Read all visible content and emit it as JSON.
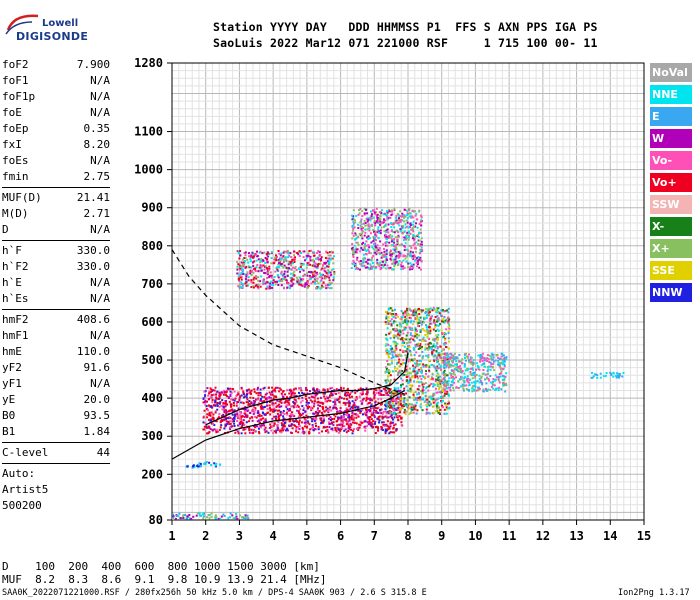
{
  "logo": {
    "line1": "Lowell",
    "line2": "DIGISONDE"
  },
  "header": {
    "line1": "Station YYYY DAY   DDD HHMMSS P1  FFS S AXN PPS IGA PS",
    "line2": "SaoLuis 2022 Mar12 071 221000 RSF     1 715 100 00- 11"
  },
  "params": [
    {
      "group": [
        {
          "k": "foF2",
          "v": "7.900"
        },
        {
          "k": "foF1",
          "v": "N/A"
        },
        {
          "k": "foF1p",
          "v": "N/A"
        },
        {
          "k": "foE",
          "v": "N/A"
        },
        {
          "k": "foEp",
          "v": "0.35"
        },
        {
          "k": "fxI",
          "v": "8.20"
        },
        {
          "k": "foEs",
          "v": "N/A"
        },
        {
          "k": "fmin",
          "v": "2.75"
        }
      ]
    },
    {
      "group": [
        {
          "k": "MUF(D)",
          "v": "21.41"
        },
        {
          "k": "M(D)",
          "v": "2.71"
        },
        {
          "k": "D",
          "v": "N/A"
        }
      ]
    },
    {
      "group": [
        {
          "k": "h`F",
          "v": "330.0"
        },
        {
          "k": "h`F2",
          "v": "330.0"
        },
        {
          "k": "h`E",
          "v": "N/A"
        },
        {
          "k": "h`Es",
          "v": "N/A"
        }
      ]
    },
    {
      "group": [
        {
          "k": "hmF2",
          "v": "408.6"
        },
        {
          "k": "hmF1",
          "v": "N/A"
        },
        {
          "k": "hmE",
          "v": "110.0"
        },
        {
          "k": "yF2",
          "v": "91.6"
        },
        {
          "k": "yF1",
          "v": "N/A"
        },
        {
          "k": "yE",
          "v": "20.0"
        },
        {
          "k": "B0",
          "v": "93.5"
        },
        {
          "k": "B1",
          "v": "1.84"
        }
      ]
    },
    {
      "group": [
        {
          "k": "C-level",
          "v": "44"
        }
      ]
    },
    {
      "group": [
        {
          "k": "Auto:",
          "v": ""
        },
        {
          "k": "Artist5",
          "v": ""
        },
        {
          "k": "500200",
          "v": ""
        }
      ]
    }
  ],
  "legend": [
    {
      "label": "NoVal",
      "color": "#a8a8a8"
    },
    {
      "label": "NNE",
      "color": "#00e4f0"
    },
    {
      "label": "E",
      "color": "#3aa8f0"
    },
    {
      "label": "W",
      "color": "#b000b8"
    },
    {
      "label": "Vo-",
      "color": "#ff50b8"
    },
    {
      "label": "Vo+",
      "color": "#f00020"
    },
    {
      "label": "SSW",
      "color": "#f4b4b4"
    },
    {
      "label": "X-",
      "color": "#188018"
    },
    {
      "label": "X+",
      "color": "#88c060"
    },
    {
      "label": "SSE",
      "color": "#e0d000"
    },
    {
      "label": "NNW",
      "color": "#2020e0"
    }
  ],
  "bottom": {
    "line1": "D    100  200  400  600  800 1000 1500 3000 [km]",
    "line2": "MUF  8.2  8.3  8.6  9.1  9.8 10.9 13.9 21.4 [MHz]"
  },
  "footer": {
    "left": "SAA0K_2022071221000.RSF / 280fx256h 50 kHz 5.0 km / DPS-4 SAA0K 903 / 2.6 S 315.8 E",
    "right": "Ion2Png 1.3.17"
  },
  "chart_data": {
    "type": "scatter",
    "xlabel": "",
    "ylabel": "",
    "xlim": [
      1,
      15
    ],
    "ylim": [
      80,
      1280
    ],
    "x_ticks": [
      1,
      2,
      3,
      4,
      5,
      6,
      7,
      8,
      9,
      10,
      11,
      12,
      13,
      14,
      15
    ],
    "y_ticks": [
      80,
      200,
      300,
      400,
      500,
      600,
      700,
      800,
      900,
      1000,
      1100,
      1280
    ],
    "grid": true,
    "series": [
      {
        "name": "NoVal",
        "color": "#a8a8a8"
      },
      {
        "name": "NNE",
        "color": "#00e4f0"
      },
      {
        "name": "E",
        "color": "#3aa8f0"
      },
      {
        "name": "W",
        "color": "#b000b8"
      },
      {
        "name": "Vo-",
        "color": "#ff50b8"
      },
      {
        "name": "Vo+",
        "color": "#f00020"
      },
      {
        "name": "SSW",
        "color": "#f4b4b4"
      },
      {
        "name": "X-",
        "color": "#188018"
      },
      {
        "name": "X+",
        "color": "#88c060"
      },
      {
        "name": "SSE",
        "color": "#e0d000"
      },
      {
        "name": "NNW",
        "color": "#2020e0"
      }
    ],
    "echo_regions": [
      {
        "x": [
          1.9,
          7.8
        ],
        "y": [
          310,
          430
        ],
        "colors": [
          "Vo+",
          "Vo-",
          "W",
          "NNW",
          "Vo+",
          "Vo+"
        ]
      },
      {
        "x": [
          7.3,
          9.2
        ],
        "y": [
          360,
          640
        ],
        "colors": [
          "X+",
          "NNE",
          "Vo+",
          "Vo-",
          "SSE",
          "E",
          "X-"
        ]
      },
      {
        "x": [
          9.0,
          10.9
        ],
        "y": [
          420,
          520
        ],
        "colors": [
          "NNE",
          "E",
          "X+",
          "Vo-"
        ]
      },
      {
        "x": [
          2.9,
          5.8
        ],
        "y": [
          690,
          790
        ],
        "colors": [
          "Vo-",
          "W",
          "Vo+",
          "NNE",
          "X+"
        ]
      },
      {
        "x": [
          6.3,
          8.4
        ],
        "y": [
          740,
          900
        ],
        "colors": [
          "Vo-",
          "W",
          "NNE",
          "X+"
        ]
      },
      {
        "x": [
          1.0,
          3.3
        ],
        "y": [
          85,
          100
        ],
        "colors": [
          "NNE",
          "E",
          "X+",
          "W"
        ]
      },
      {
        "x": [
          1.4,
          2.4
        ],
        "y": [
          220,
          235
        ],
        "colors": [
          "NNE",
          "E",
          "NNW"
        ]
      },
      {
        "x": [
          13.4,
          14.4
        ],
        "y": [
          455,
          470
        ],
        "colors": [
          "NNE",
          "E"
        ]
      }
    ],
    "curves": [
      {
        "name": "ordinary-trace",
        "style": "solid",
        "x": [
          1,
          2,
          3,
          4,
          4.5,
          5,
          5.5,
          6,
          6.5,
          7,
          7.5,
          7.9
        ],
        "y": [
          240,
          290,
          320,
          340,
          345,
          350,
          355,
          360,
          370,
          380,
          400,
          420
        ]
      },
      {
        "name": "virtual-height",
        "style": "solid",
        "x": [
          2,
          3,
          4,
          4.5,
          5,
          5.5,
          6,
          6.5,
          7,
          7.5,
          7.9,
          8.0
        ],
        "y": [
          330,
          370,
          395,
          400,
          410,
          415,
          420,
          420,
          425,
          435,
          470,
          520
        ]
      },
      {
        "name": "model-upper",
        "style": "dashed",
        "x": [
          1,
          1.5,
          2,
          3,
          4,
          5,
          6,
          7,
          7.9
        ],
        "y": [
          790,
          720,
          670,
          590,
          540,
          510,
          480,
          440,
          410
        ]
      }
    ]
  }
}
